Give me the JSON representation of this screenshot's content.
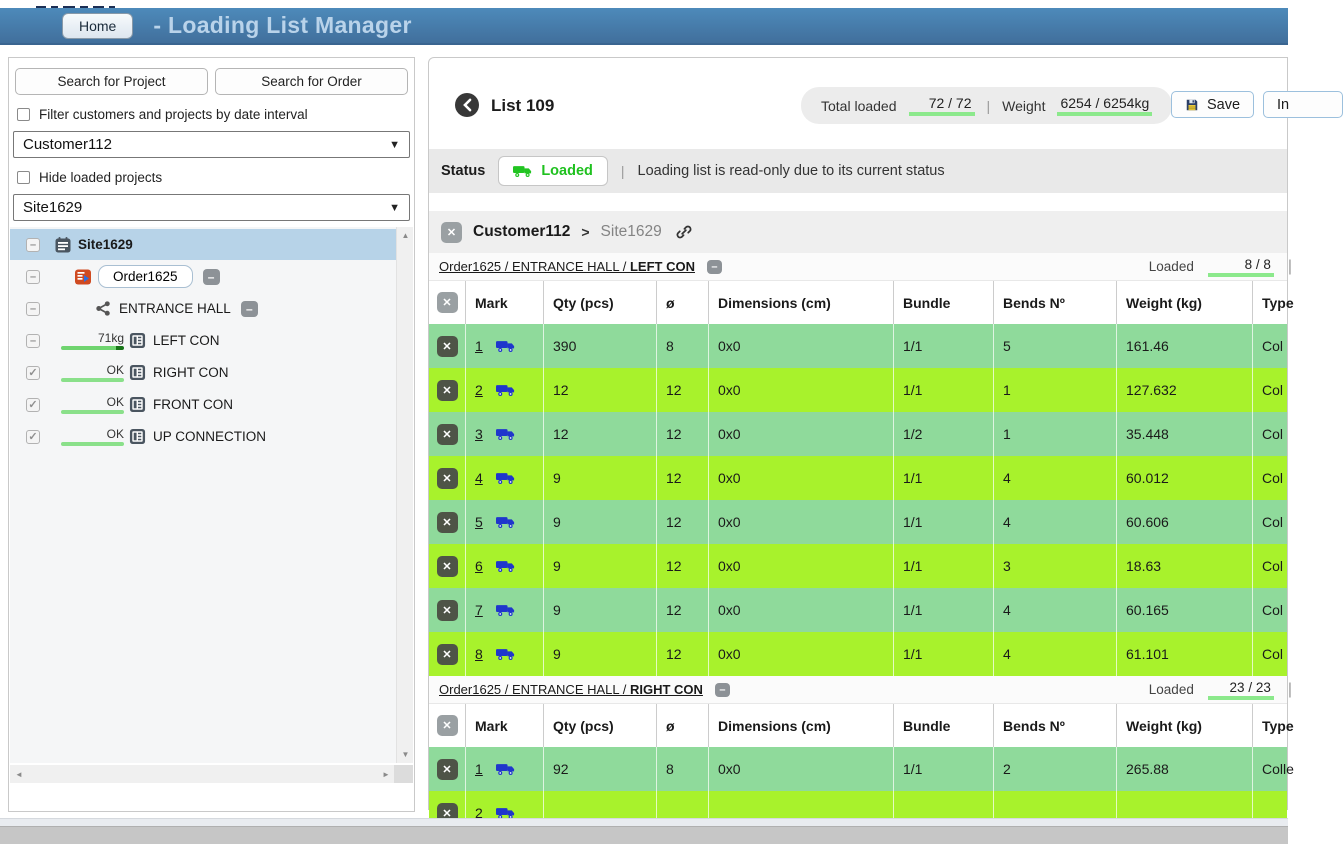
{
  "app": {
    "home": "Home",
    "title": "- Loading List Manager"
  },
  "glyphs": {
    "close": "✕",
    "minus": "–",
    "caret_down": "▼",
    "check": "✓",
    "up": "▲",
    "down": "▼",
    "left": "◄",
    "right": "►"
  },
  "misc": {
    "divider": "|"
  },
  "sidebar": {
    "search_project_button": "Search for Project",
    "search_order_button": "Search for Order",
    "filter_by_date_label": "Filter customers and projects by date interval",
    "customer_dropdown_value": "Customer112",
    "hide_loaded_label": "Hide loaded projects",
    "site_dropdown_value": "Site1629",
    "tree": [
      {
        "label": "Site1629"
      },
      {
        "label": "Order1625",
        "badge": "-"
      },
      {
        "label": "ENTRANCE HALL",
        "badge": "-"
      },
      {
        "label": "LEFT CON",
        "status": "71kg"
      },
      {
        "label": "RIGHT CON",
        "status": "OK"
      },
      {
        "label": "FRONT CON",
        "status": "OK"
      },
      {
        "label": "UP CONNECTION",
        "status": "OK"
      }
    ]
  },
  "toolbar": {
    "list_title": "List 109",
    "total_loaded_label": "Total loaded",
    "total_loaded_value": "72 / 72",
    "weight_label": "Weight",
    "weight_value": "6254 / 6254kg",
    "save_button": "Save",
    "clipped_button": "In"
  },
  "status_bar": {
    "label": "Status",
    "badge": "Loaded",
    "message": "Loading list is read-only due to its current status"
  },
  "breadcrumb": {
    "customer": "Customer112",
    "sep": ">",
    "site": "Site1629"
  },
  "sections": [
    {
      "title_prefix": "Order1625 / ENTRANCE HALL / ",
      "title_bold": "LEFT CON",
      "badge": "-",
      "loaded_label": "Loaded",
      "loaded_value": "8 / 8",
      "columns": [
        "Mark",
        "Qty (pcs)",
        "ø",
        "Dimensions (cm)",
        "Bundle",
        "Bends Nº",
        "Weight (kg)",
        "Type"
      ],
      "rows": [
        {
          "mark": "1",
          "qty": "390",
          "dia": "8",
          "dims": "0x0",
          "bundle": "1/1",
          "bends": "5",
          "weight": "161.46",
          "type": "Col"
        },
        {
          "mark": "2",
          "qty": "12",
          "dia": "12",
          "dims": "0x0",
          "bundle": "1/1",
          "bends": "1",
          "weight": "127.632",
          "type": "Col"
        },
        {
          "mark": "3",
          "qty": "12",
          "dia": "12",
          "dims": "0x0",
          "bundle": "1/2",
          "bends": "1",
          "weight": "35.448",
          "type": "Col"
        },
        {
          "mark": "4",
          "qty": "9",
          "dia": "12",
          "dims": "0x0",
          "bundle": "1/1",
          "bends": "4",
          "weight": "60.012",
          "type": "Col"
        },
        {
          "mark": "5",
          "qty": "9",
          "dia": "12",
          "dims": "0x0",
          "bundle": "1/1",
          "bends": "4",
          "weight": "60.606",
          "type": "Col"
        },
        {
          "mark": "6",
          "qty": "9",
          "dia": "12",
          "dims": "0x0",
          "bundle": "1/1",
          "bends": "3",
          "weight": "18.63",
          "type": "Col"
        },
        {
          "mark": "7",
          "qty": "9",
          "dia": "12",
          "dims": "0x0",
          "bundle": "1/1",
          "bends": "4",
          "weight": "60.165",
          "type": "Col"
        },
        {
          "mark": "8",
          "qty": "9",
          "dia": "12",
          "dims": "0x0",
          "bundle": "1/1",
          "bends": "4",
          "weight": "61.101",
          "type": "Col"
        }
      ]
    },
    {
      "title_prefix": "Order1625 / ENTRANCE HALL / ",
      "title_bold": "RIGHT CON",
      "badge": "-",
      "loaded_label": "Loaded",
      "loaded_value": "23 / 23",
      "columns": [
        "Mark",
        "Qty (pcs)",
        "ø",
        "Dimensions (cm)",
        "Bundle",
        "Bends Nº",
        "Weight (kg)",
        "Type"
      ],
      "rows": [
        {
          "mark": "1",
          "qty": "92",
          "dia": "8",
          "dims": "0x0",
          "bundle": "1/1",
          "bends": "2",
          "weight": "265.88",
          "type": "Colle"
        },
        {
          "mark": "2",
          "qty": "",
          "dia": "",
          "dims": "",
          "bundle": "",
          "bends": "",
          "weight": "",
          "type": ""
        }
      ]
    }
  ],
  "colors": {
    "header_blue": "#4d8aba",
    "selection_blue": "#b7d3e8",
    "row_green_soft": "#8fda9b",
    "row_green_bright": "#a8f22c",
    "progress_green": "#8ce98c",
    "status_green": "#1fc11f",
    "truck_blue": "#1f36cc"
  }
}
